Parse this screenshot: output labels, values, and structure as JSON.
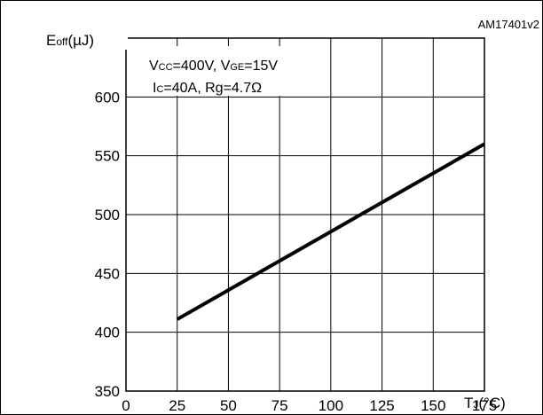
{
  "figure_id": "AM17401v2",
  "conditions": {
    "line1": {
      "v": "V",
      "cc": "CC",
      "v_eq": "=400V, V",
      "ge": "GE",
      "ge_eq": "=15V"
    },
    "line2": {
      "i": "I",
      "c": "C",
      "rest": "=40A, Rg=4.7Ω"
    }
  },
  "axes": {
    "y_label": {
      "main": "E",
      "sub": "off",
      "unit": "(µJ)"
    },
    "x_label": {
      "main": "T",
      "sub": "J",
      "unit": "(°C)"
    }
  },
  "chart_data": {
    "type": "line",
    "xlim": [
      0,
      175
    ],
    "ylim": [
      350,
      650
    ],
    "x_ticks": [
      0,
      25,
      50,
      75,
      100,
      125,
      150,
      175
    ],
    "y_ticks": [
      350,
      400,
      450,
      500,
      550,
      600
    ],
    "grid": true,
    "legend": "none",
    "series": [
      {
        "x": [
          25,
          175
        ],
        "y": [
          411,
          560
        ]
      }
    ],
    "line_color": "#000000"
  }
}
